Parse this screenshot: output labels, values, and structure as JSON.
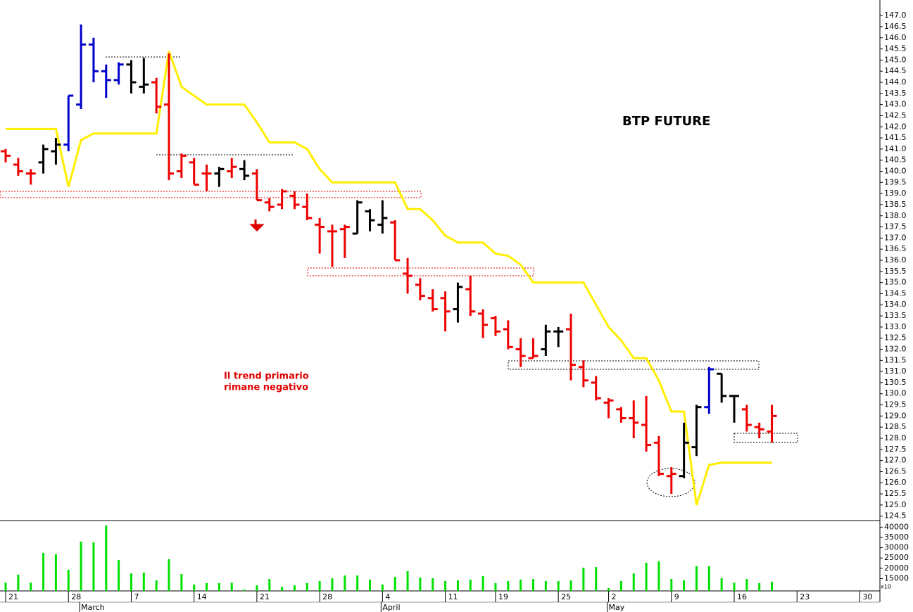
{
  "chart_data": [
    {
      "type": "ohlc",
      "annotations": [
        "BTP FUTURE",
        "Il trend primario",
        "rimane negativo"
      ],
      "xlim": [
        -0.45,
        69.6
      ],
      "xticks": [
        {
          "value": 0,
          "label": "21"
        },
        {
          "value": 5,
          "label": "28"
        },
        {
          "value": 10,
          "label": "7"
        },
        {
          "value": 15,
          "label": "14"
        },
        {
          "value": 20,
          "label": "21"
        },
        {
          "value": 25,
          "label": "28"
        },
        {
          "value": 30,
          "label": "4"
        },
        {
          "value": 35,
          "label": "11"
        },
        {
          "value": 39,
          "label": "19"
        },
        {
          "value": 44,
          "label": "25"
        },
        {
          "value": 48,
          "label": "2"
        },
        {
          "value": 53,
          "label": "9"
        },
        {
          "value": 58,
          "label": "16"
        },
        {
          "value": 63,
          "label": "23"
        },
        {
          "value": 68,
          "label": "30"
        }
      ],
      "month_ticks": [
        {
          "value": 6,
          "label": "March"
        },
        {
          "value": 30,
          "label": "April"
        },
        {
          "value": 48,
          "label": "May"
        }
      ],
      "ylim": [
        124.3,
        147.7
      ],
      "yticks": [
        {
          "value": 147,
          "label": "147.0"
        },
        {
          "value": 146.5,
          "label": "146.5"
        },
        {
          "value": 146,
          "label": "146.0"
        },
        {
          "value": 145.5,
          "label": "145.5"
        },
        {
          "value": 145,
          "label": "145.0"
        },
        {
          "value": 144.5,
          "label": "144.5"
        },
        {
          "value": 144,
          "label": "144.0"
        },
        {
          "value": 143.5,
          "label": "143.5"
        },
        {
          "value": 143,
          "label": "143.0"
        },
        {
          "value": 142.5,
          "label": "142.5"
        },
        {
          "value": 142,
          "label": "142.0"
        },
        {
          "value": 141.5,
          "label": "141.5"
        },
        {
          "value": 141,
          "label": "141.0"
        },
        {
          "value": 140.5,
          "label": "140.5"
        },
        {
          "value": 140,
          "label": "140.0"
        },
        {
          "value": 139.5,
          "label": "139.5"
        },
        {
          "value": 139,
          "label": "139.0"
        },
        {
          "value": 138.5,
          "label": "138.5"
        },
        {
          "value": 138,
          "label": "138.0"
        },
        {
          "value": 137.5,
          "label": "137.5"
        },
        {
          "value": 137,
          "label": "137.0"
        },
        {
          "value": 136.5,
          "label": "136.5"
        },
        {
          "value": 136,
          "label": "136.0"
        },
        {
          "value": 135.5,
          "label": "135.5"
        },
        {
          "value": 135,
          "label": "135.0"
        },
        {
          "value": 134.5,
          "label": "134.5"
        },
        {
          "value": 134,
          "label": "134.0"
        },
        {
          "value": 133.5,
          "label": "133.5"
        },
        {
          "value": 133,
          "label": "133.0"
        },
        {
          "value": 132.5,
          "label": "132.5"
        },
        {
          "value": 132,
          "label": "132.0"
        },
        {
          "value": 131.5,
          "label": "131.5"
        },
        {
          "value": 131,
          "label": "131.0"
        },
        {
          "value": 130.5,
          "label": "130.5"
        },
        {
          "value": 130,
          "label": "130.0"
        },
        {
          "value": 129.5,
          "label": "129.5"
        },
        {
          "value": 129,
          "label": "129.0"
        },
        {
          "value": 128.5,
          "label": "128.5"
        },
        {
          "value": 128,
          "label": "128.0"
        },
        {
          "value": 127.5,
          "label": "127.5"
        },
        {
          "value": 127,
          "label": "127.0"
        },
        {
          "value": 126.5,
          "label": "126.5"
        },
        {
          "value": 126,
          "label": "126.0"
        },
        {
          "value": 125.5,
          "label": "125.5"
        },
        {
          "value": 125,
          "label": "125.0"
        },
        {
          "value": 124.5,
          "label": "124.5"
        }
      ],
      "open": [
        140.9,
        140.3,
        139.9,
        140.4,
        140.9,
        141.2,
        143.0,
        145.7,
        144.5,
        144.1,
        144.8,
        143.8,
        144.0,
        143.0,
        140.0,
        140.4,
        139.9,
        139.9,
        140.0,
        140.1,
        139.9,
        138.6,
        138.5,
        138.9,
        138.4,
        137.6,
        137.3,
        137.4,
        137.2,
        138.2,
        137.6,
        137.7,
        135.4,
        134.9,
        134.3,
        134.3,
        133.8,
        134.7,
        133.6,
        133.4,
        132.9,
        132.0,
        131.6,
        132.0,
        132.8,
        132.9,
        131.2,
        130.5,
        129.6,
        129.3,
        128.9,
        128.6,
        127.8,
        126.3,
        126.3,
        127.6,
        129.4,
        130.9,
        129.9,
        129.3,
        128.5,
        128.3
      ],
      "high": [
        141.0,
        140.6,
        140.1,
        141.2,
        141.5,
        143.4,
        146.6,
        146.0,
        144.8,
        144.9,
        145.0,
        145.1,
        144.2,
        145.3,
        140.8,
        140.6,
        140.3,
        140.2,
        140.6,
        140.5,
        140.1,
        138.8,
        139.2,
        139.1,
        139.0,
        137.9,
        137.6,
        137.6,
        138.7,
        138.3,
        138.7,
        137.8,
        136.1,
        135.2,
        134.7,
        134.6,
        135.0,
        135.3,
        133.8,
        133.5,
        133.3,
        132.5,
        132.5,
        133.1,
        133.0,
        133.6,
        131.5,
        130.8,
        129.8,
        129.4,
        129.7,
        129.9,
        128.1,
        126.7,
        128.7,
        129.5,
        131.2,
        130.9,
        129.9,
        129.5,
        128.7,
        129.5
      ],
      "low": [
        140.4,
        139.8,
        139.4,
        139.9,
        140.3,
        140.9,
        142.8,
        144.0,
        143.3,
        143.9,
        143.5,
        143.5,
        142.6,
        139.6,
        139.7,
        139.4,
        139.1,
        139.3,
        139.7,
        139.6,
        138.7,
        138.2,
        138.3,
        138.3,
        137.8,
        136.3,
        135.7,
        136.1,
        137.2,
        137.3,
        137.2,
        136.0,
        134.5,
        134.2,
        133.7,
        132.8,
        133.2,
        133.5,
        132.5,
        132.6,
        132.0,
        131.2,
        131.6,
        131.7,
        132.1,
        130.6,
        130.3,
        129.7,
        128.9,
        128.7,
        128.0,
        127.4,
        126.3,
        125.5,
        126.2,
        127.2,
        129.1,
        129.6,
        128.7,
        128.3,
        128.0,
        127.8
      ],
      "close": [
        140.7,
        140.0,
        139.9,
        141.0,
        141.2,
        143.4,
        145.7,
        144.5,
        144.1,
        144.8,
        144.0,
        143.9,
        142.9,
        139.9,
        140.7,
        139.4,
        139.9,
        140.1,
        140.2,
        139.8,
        138.7,
        138.4,
        139.1,
        138.5,
        137.9,
        137.5,
        137.3,
        137.5,
        138.6,
        137.8,
        137.9,
        136.0,
        135.3,
        134.4,
        133.8,
        133.7,
        134.8,
        133.7,
        133.1,
        132.8,
        132.1,
        131.7,
        131.7,
        132.8,
        132.8,
        131.3,
        130.6,
        129.8,
        129.7,
        128.9,
        128.7,
        127.7,
        126.4,
        126.4,
        127.8,
        129.4,
        131.1,
        129.9,
        129.9,
        128.6,
        128.4,
        129.0
      ],
      "colors": [
        "#ee0000",
        "#ee0000",
        "#ee0000",
        "#000000",
        "#000000",
        "#0000cc",
        "#0000cc",
        "#0000cc",
        "#0000cc",
        "#0000cc",
        "#000000",
        "#000000",
        "#ee0000",
        "#ee0000",
        "#ee0000",
        "#ee0000",
        "#ee0000",
        "#000000",
        "#ee0000",
        "#000000",
        "#ee0000",
        "#ee0000",
        "#ee0000",
        "#ee0000",
        "#ee0000",
        "#ee0000",
        "#ee0000",
        "#ee0000",
        "#000000",
        "#000000",
        "#000000",
        "#ee0000",
        "#ee0000",
        "#ee0000",
        "#ee0000",
        "#ee0000",
        "#000000",
        "#ee0000",
        "#ee0000",
        "#ee0000",
        "#ee0000",
        "#ee0000",
        "#ee0000",
        "#000000",
        "#000000",
        "#ee0000",
        "#ee0000",
        "#ee0000",
        "#ee0000",
        "#ee0000",
        "#ee0000",
        "#ee0000",
        "#ee0000",
        "#ee0000",
        "#000000",
        "#000000",
        "#0000cc",
        "#000000",
        "#000000",
        "#ee0000",
        "#ee0000",
        "#ee0000"
      ],
      "line": {
        "color": "#ffee00",
        "values": [
          141.9,
          141.9,
          141.9,
          141.9,
          141.9,
          139.3,
          141.4,
          141.7,
          141.7,
          141.7,
          141.7,
          141.7,
          141.7,
          145.4,
          143.8,
          143.4,
          143.0,
          143.0,
          143.0,
          143.0,
          142.2,
          141.3,
          141.3,
          141.3,
          141.0,
          140.1,
          139.5,
          139.5,
          139.5,
          139.5,
          139.5,
          139.5,
          138.3,
          138.3,
          137.8,
          137.1,
          136.8,
          136.8,
          136.8,
          136.3,
          136.2,
          135.8,
          135.0,
          135.0,
          135.0,
          135.0,
          135.0,
          134.0,
          133.0,
          132.4,
          131.6,
          131.6,
          130.6,
          129.2,
          129.2,
          125.0,
          126.8,
          126.9,
          126.9,
          126.9,
          126.9,
          126.9
        ]
      }
    },
    {
      "type": "bar",
      "color": "#00e000",
      "unit_label": "x10",
      "values": [
        13000,
        16900,
        13000,
        27500,
        26800,
        19300,
        33000,
        32600,
        40800,
        24000,
        17500,
        17900,
        14100,
        24400,
        17200,
        12100,
        12800,
        12800,
        13000,
        9700,
        11700,
        14800,
        11000,
        11700,
        12800,
        13800,
        15200,
        16500,
        16500,
        14500,
        12100,
        15800,
        18600,
        15500,
        15200,
        13800,
        14100,
        14500,
        16200,
        12800,
        13800,
        14500,
        14800,
        13800,
        13800,
        14100,
        20300,
        20600,
        10400,
        13800,
        17500,
        22700,
        23400,
        14800,
        14100,
        21000,
        21000,
        15200,
        13000,
        14800,
        12800,
        13400
      ],
      "ylim": [
        9000,
        41500
      ],
      "yticks": [
        15000,
        20000,
        25000,
        30000,
        35000,
        40000
      ]
    }
  ]
}
